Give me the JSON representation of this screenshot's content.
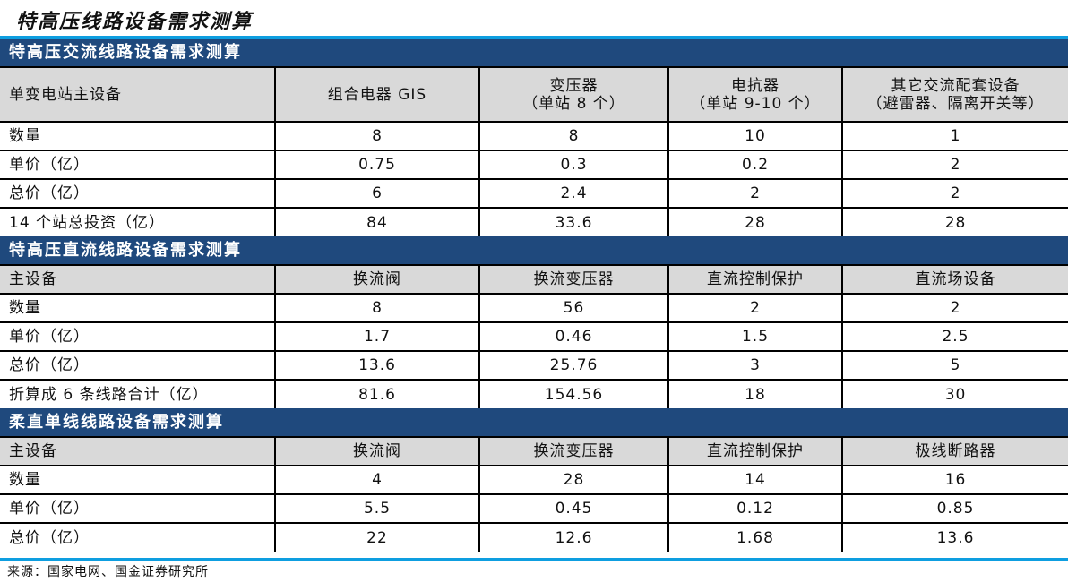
{
  "title": "特高压线路设备需求测算",
  "sections": [
    {
      "title": "特高压交流线路设备需求测算",
      "header": [
        "单变电站主设备",
        "组合电器 GIS",
        "变压器\n（单站 8 个）",
        "电抗器\n（单站 9-10 个）",
        "其它交流配套设备\n（避雷器、隔离开关等）"
      ],
      "rows": [
        [
          "数量",
          "8",
          "8",
          "10",
          "1"
        ],
        [
          "单价（亿）",
          "0.75",
          "0.3",
          "0.2",
          "2"
        ],
        [
          "总价（亿）",
          "6",
          "2.4",
          "2",
          "2"
        ],
        [
          "14 个站总投资（亿）",
          "84",
          "33.6",
          "28",
          "28"
        ]
      ]
    },
    {
      "title": "特高压直流线路设备需求测算",
      "header": [
        "主设备",
        "换流阀",
        "换流变压器",
        "直流控制保护",
        "直流场设备"
      ],
      "rows": [
        [
          "数量",
          "8",
          "56",
          "2",
          "2"
        ],
        [
          "单价（亿）",
          "1.7",
          "0.46",
          "1.5",
          "2.5"
        ],
        [
          "总价（亿）",
          "13.6",
          "25.76",
          "3",
          "5"
        ],
        [
          "折算成 6 条线路合计（亿）",
          "81.6",
          "154.56",
          "18",
          "30"
        ]
      ]
    },
    {
      "title": "柔直单线线路设备需求测算",
      "header": [
        "主设备",
        "换流阀",
        "换流变压器",
        "直流控制保护",
        "极线断路器"
      ],
      "rows": [
        [
          "数量",
          "4",
          "28",
          "14",
          "16"
        ],
        [
          "单价（亿）",
          "5.5",
          "0.45",
          "0.12",
          "0.85"
        ],
        [
          "总价（亿）",
          "22",
          "12.6",
          "1.68",
          "13.6"
        ]
      ]
    }
  ],
  "source": "来源：国家电网、国金证券研究所",
  "colors": {
    "section_header": "#1f497d",
    "accent_line": "#0e9ee0",
    "header_row": "#d9d9d9"
  }
}
